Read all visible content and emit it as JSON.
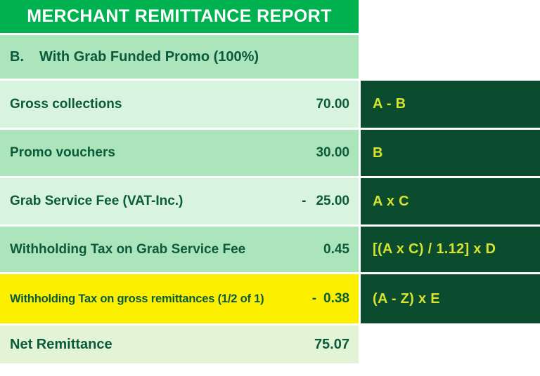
{
  "colors": {
    "brand_green": "#00B14F",
    "row_medium": "#ACE5BC",
    "row_light": "#D9F4DE",
    "row_yellow": "#FCF000",
    "row_net": "#E3F4D6",
    "panel_dark": "#0B4B2E",
    "formula_yellow": "#D6E331",
    "ink": "#0B5B3B",
    "title_text": "#FFFFFF"
  },
  "report": {
    "title": "MERCHANT REMITTANCE REPORT",
    "section": {
      "label": "B.",
      "title": "With Grab Funded Promo (100%)"
    },
    "rows": [
      {
        "label": "Gross collections",
        "minus": "",
        "value": "70.00",
        "formula": "A - B"
      },
      {
        "label": "Promo vouchers",
        "minus": "",
        "value": "30.00",
        "formula": "B"
      },
      {
        "label": "Grab Service Fee (VAT-Inc.)",
        "minus": "-",
        "value": "25.00",
        "formula": "A x C"
      },
      {
        "label": "Withholding Tax on Grab Service Fee",
        "minus": "",
        "value": "0.45",
        "formula": "[(A x C) / 1.12] x D"
      },
      {
        "label": "Withholding Tax on gross remittances (1/2 of 1)",
        "minus": "-",
        "value": "0.38",
        "formula": "(A - Z) x E"
      }
    ],
    "total": {
      "label": "Net Remittance",
      "value": "75.07"
    }
  }
}
